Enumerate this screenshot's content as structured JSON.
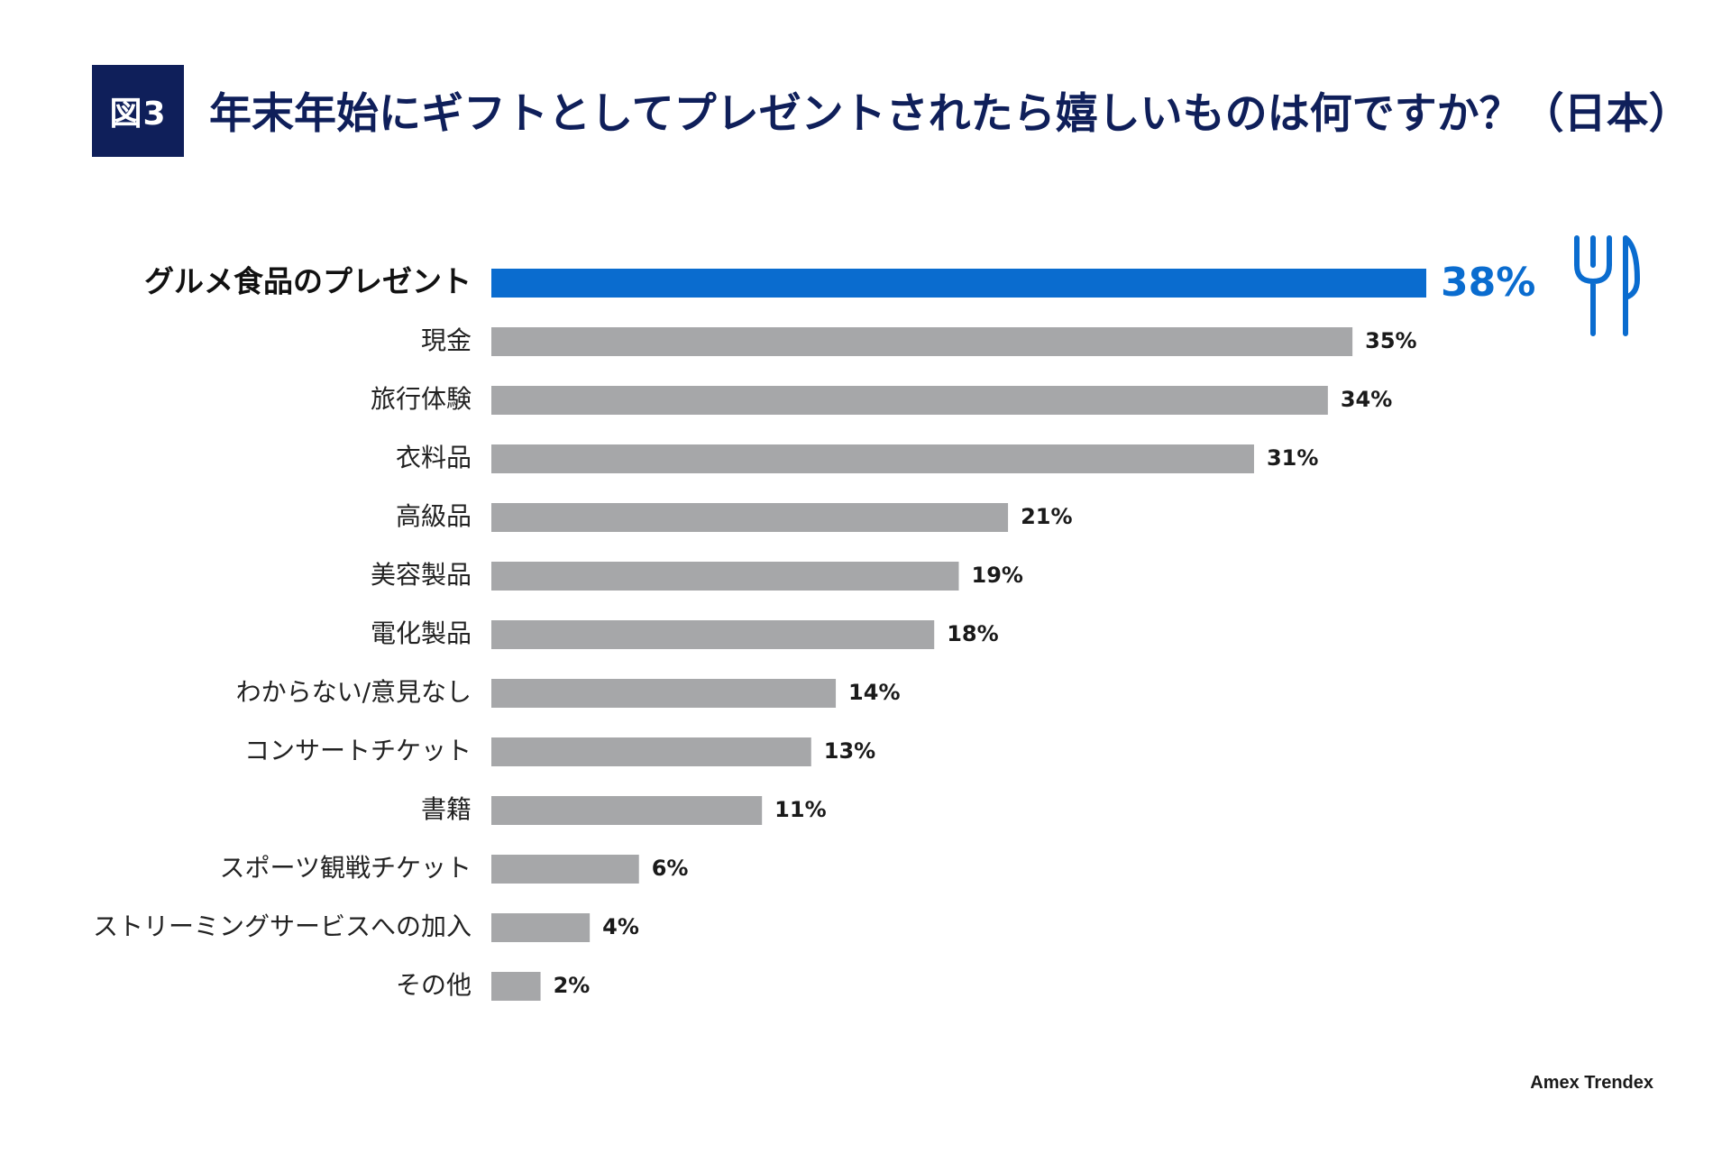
{
  "figure": {
    "badge": "図3",
    "title": "年末年始にギフトとしてプレゼントされたら嬉しいものは何ですか？（日本）",
    "source": "Amex Trendex"
  },
  "colors": {
    "highlight": "#0a6ccf",
    "bar": "#a6a7a9",
    "badge_bg": "#0f1f5a",
    "title": "#0f1f5a"
  },
  "icons": {
    "highlight_icon": "fork-knife-icon"
  },
  "chart_data": {
    "type": "bar",
    "orientation": "horizontal",
    "title": "年末年始にギフトとしてプレゼントされたら嬉しいものは何ですか？（日本）",
    "xlabel": "",
    "ylabel": "",
    "unit": "%",
    "xlim": [
      0,
      38
    ],
    "highlight_index": 0,
    "categories": [
      "グルメ食品のプレゼント",
      "現金",
      "旅行体験",
      "衣料品",
      "高級品",
      "美容製品",
      "電化製品",
      "わからない/意見なし",
      "コンサートチケット",
      "書籍",
      "スポーツ観戦チケット",
      "ストリーミングサービスへの加入",
      "その他"
    ],
    "values": [
      38,
      35,
      34,
      31,
      21,
      19,
      18,
      14,
      13,
      11,
      6,
      4,
      2
    ],
    "value_labels": [
      "38%",
      "35%",
      "34%",
      "31%",
      "21%",
      "19%",
      "18%",
      "14%",
      "13%",
      "11%",
      "6%",
      "4%",
      "2%"
    ]
  }
}
